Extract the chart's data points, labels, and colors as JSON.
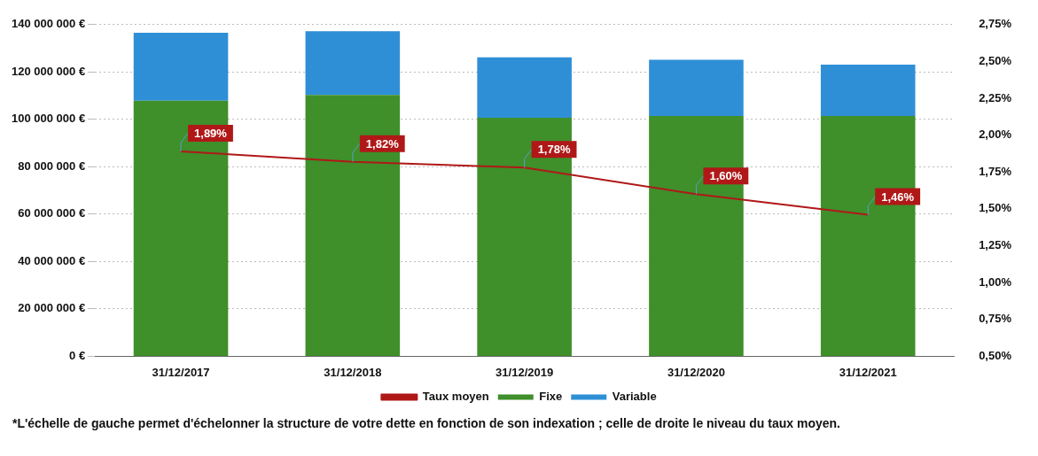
{
  "chart_data": {
    "type": "bar",
    "stacked": true,
    "categories": [
      "31/12/2017",
      "31/12/2018",
      "31/12/2019",
      "31/12/2020",
      "31/12/2021"
    ],
    "series": [
      {
        "name": "Fixe",
        "color": "#3f8f2a",
        "values": [
          107900000,
          110300000,
          100700000,
          101400000,
          101400000
        ]
      },
      {
        "name": "Variable",
        "color": "#2f8fd6",
        "values": [
          28700000,
          26900000,
          25500000,
          23800000,
          21700000
        ]
      },
      {
        "name": "Taux moyen",
        "type": "line",
        "axis": "y2",
        "color": "#b01818",
        "values": [
          1.89,
          1.82,
          1.78,
          1.6,
          1.46
        ],
        "value_labels": [
          "1,89%",
          "1,82%",
          "1,78%",
          "1,60%",
          "1,46%"
        ]
      }
    ],
    "ylim": [
      0,
      140000000
    ],
    "yticks": [
      {
        "value": 0,
        "label": "0 €"
      },
      {
        "value": 20000000,
        "label": "20 000 000 €"
      },
      {
        "value": 40000000,
        "label": "40 000 000 €"
      },
      {
        "value": 60000000,
        "label": "60 000 000 €"
      },
      {
        "value": 80000000,
        "label": "80 000 000 €"
      },
      {
        "value": 100000000,
        "label": "100 000 000 €"
      },
      {
        "value": 120000000,
        "label": "120 000 000 €"
      },
      {
        "value": 140000000,
        "label": "140 000 000 €"
      }
    ],
    "y2lim": [
      0.5,
      2.75
    ],
    "y2ticks": [
      {
        "value": 0.5,
        "label": "0,50%"
      },
      {
        "value": 0.75,
        "label": "0,75%"
      },
      {
        "value": 1,
        "label": "1,00%"
      },
      {
        "value": 1.25,
        "label": "1,25%"
      },
      {
        "value": 1.5,
        "label": "1,50%"
      },
      {
        "value": 1.75,
        "label": "1,75%"
      },
      {
        "value": 2,
        "label": "2,00%"
      },
      {
        "value": 2.25,
        "label": "2,25%"
      },
      {
        "value": 2.5,
        "label": "2,50%"
      },
      {
        "value": 2.75,
        "label": "2,75%"
      }
    ],
    "grid": "y",
    "legend": "bottom",
    "marker": "none",
    "annotations": [
      "*L'échelle de gauche permet d'échelonner la structure de votre dette en fonction de son indexation ; celle de droite le niveau du taux moyen."
    ]
  }
}
